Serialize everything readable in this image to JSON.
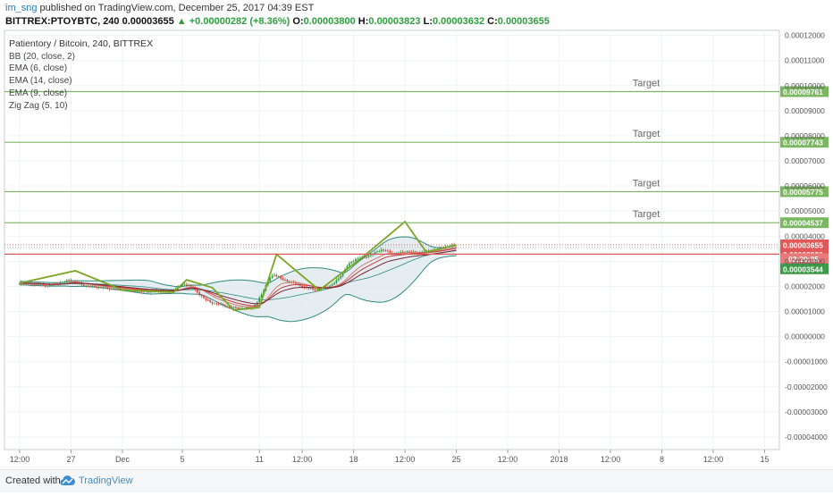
{
  "header": {
    "user": "im_sng",
    "published_text": " published on TradingView.com, December 25, 2017 04:39 EST",
    "symbol": "BITTREX:PTOYBTC, 240",
    "last": "0.00003655",
    "change": "+0.00000282 (+8.36%)",
    "o_label": "O:",
    "o_value": "0.00003800",
    "h_label": "H:",
    "h_value": "0.00003823",
    "l_label": "L:",
    "l_value": "0.00003632",
    "c_label": "C:",
    "c_value": "0.00003655"
  },
  "legend": {
    "title": "Patientory / Bitcoin, 240, BITTREX",
    "studies": [
      "BB (20, close, 2)",
      "EMA (6, close)",
      "EMA (14, close)",
      "EMA (9, close)",
      "Zig Zag (5, 10)"
    ]
  },
  "footer": {
    "created_with": "Created with",
    "brand": "TradingView"
  },
  "colors": {
    "target_line": "#7bb661",
    "stop_line": "#e05858",
    "up_candle": "#3d9a4a",
    "down_candle": "#d0463e",
    "bb_fill": "#dfe9ee",
    "bb_line": "#2f8a7e",
    "zigzag": "#7aa526",
    "ema6": "#d07a6e",
    "ema14": "#7a2533",
    "ema9": "#c93b3b"
  },
  "chart_data": {
    "type": "candlestick",
    "y_axis": {
      "min": -4.5e-05,
      "max": 0.000122,
      "ticks": [
        "0.00012000",
        "0.00011000",
        "0.00010000",
        "0.00009000",
        "0.00008000",
        "0.00007000",
        "0.00006000",
        "0.00005000",
        "0.00004000",
        "0.00003000",
        "0.00002000",
        "0.00001000",
        "0.00000000",
        "-0.00001000",
        "-0.00002000",
        "-0.00003000",
        "-0.00004000"
      ],
      "tick_values": [
        0.00012,
        0.00011,
        0.0001,
        9e-05,
        8e-05,
        7e-05,
        6e-05,
        5e-05,
        4e-05,
        3e-05,
        2e-05,
        1e-05,
        0.0,
        -1e-05,
        -2e-05,
        -3e-05,
        -4e-05
      ]
    },
    "x_axis": {
      "ticks": [
        "12:00",
        "27",
        "Dec",
        "5",
        "11",
        "12:00",
        "18",
        "12:00",
        "25",
        "12:00",
        "2018",
        "12:00",
        "8",
        "12:00",
        "15"
      ],
      "tick_index": [
        0,
        12,
        24,
        38,
        56,
        66,
        78,
        90,
        102,
        114,
        126,
        138,
        150,
        162,
        174
      ]
    },
    "horizontal_lines": [
      {
        "label": "Target",
        "value": 9.761e-05,
        "price": "0.00009761",
        "kind": "target"
      },
      {
        "label": "Target",
        "value": 7.743e-05,
        "price": "0.00007743",
        "kind": "target"
      },
      {
        "label": "Target",
        "value": 5.775e-05,
        "price": "0.00005775",
        "kind": "target"
      },
      {
        "label": "Target",
        "value": 4.537e-05,
        "price": "0.00004537",
        "kind": "target"
      },
      {
        "label": "",
        "value": 3.286e-05,
        "price": "0.00003286",
        "kind": "stop"
      }
    ],
    "price_badges": [
      {
        "price": "0.00003655",
        "value": 3.655e-05,
        "kind": "last"
      },
      {
        "price": "02:20:05",
        "value": 3.1e-05,
        "kind": "timer"
      },
      {
        "price": "0.00003544",
        "value": 2.7e-05,
        "kind": "green"
      }
    ],
    "price_path": [
      2.13e-05,
      2.12e-05,
      2.1e-05,
      2.08e-05,
      2.09e-05,
      2.07e-05,
      2.05e-05,
      2.03e-05,
      2.06e-05,
      2.09e-05,
      2.14e-05,
      2.19e-05,
      2.24e-05,
      2.19e-05,
      2.12e-05,
      2.07e-05,
      2.03e-05,
      2.01e-05,
      1.99e-05,
      1.97e-05,
      1.94e-05,
      1.93e-05,
      1.91e-05,
      1.9e-05,
      1.88e-05,
      1.87e-05,
      1.85e-05,
      1.83e-05,
      1.81e-05,
      1.8e-05,
      1.79e-05,
      1.8e-05,
      1.81e-05,
      1.79e-05,
      1.78e-05,
      1.78e-05,
      1.83e-05,
      1.92e-05,
      2.02e-05,
      2.08e-05,
      2.05e-05,
      1.94e-05,
      1.76e-05,
      1.62e-05,
      1.46e-05,
      1.38e-05,
      1.32e-05,
      1.29e-05,
      1.24e-05,
      1.19e-05,
      1.16e-05,
      1.14e-05,
      1.13e-05,
      1.13e-05,
      1.14e-05,
      1.18e-05,
      1.37e-05,
      1.68e-05,
      2.05e-05,
      2.34e-05,
      2.46e-05,
      2.39e-05,
      2.26e-05,
      2.2e-05,
      2.18e-05,
      2.1e-05,
      2.03e-05,
      1.96e-05,
      1.92e-05,
      1.88e-05,
      1.87e-05,
      1.91e-05,
      1.96e-05,
      2.03e-05,
      2.14e-05,
      2.32e-05,
      2.56e-05,
      2.81e-05,
      2.98e-05,
      3.09e-05,
      3.13e-05,
      3.17e-05,
      3.22e-05,
      3.29e-05,
      3.39e-05,
      3.46e-05,
      3.42e-05,
      3.34e-05,
      3.31e-05,
      3.33e-05,
      3.36e-05,
      3.39e-05,
      3.37e-05,
      3.34e-05,
      3.36e-05,
      3.38e-05,
      3.42e-05,
      3.45e-05,
      3.48e-05,
      3.53e-05,
      3.58e-05,
      3.62e-05,
      3.65e-05
    ],
    "zigzag_points": [
      [
        0,
        2.13e-05
      ],
      [
        13,
        2.62e-05
      ],
      [
        24,
        1.86e-05
      ],
      [
        36,
        1.77e-05
      ],
      [
        39,
        2.26e-05
      ],
      [
        45,
        1.95e-05
      ],
      [
        50,
        1.06e-05
      ],
      [
        56,
        1.16e-05
      ],
      [
        60,
        3.28e-05
      ],
      [
        70,
        1.85e-05
      ],
      [
        80,
        3.15e-05
      ],
      [
        90,
        4.58e-05
      ],
      [
        95,
        3.36e-05
      ],
      [
        102,
        3.65e-05
      ]
    ],
    "last_index": 102
  }
}
